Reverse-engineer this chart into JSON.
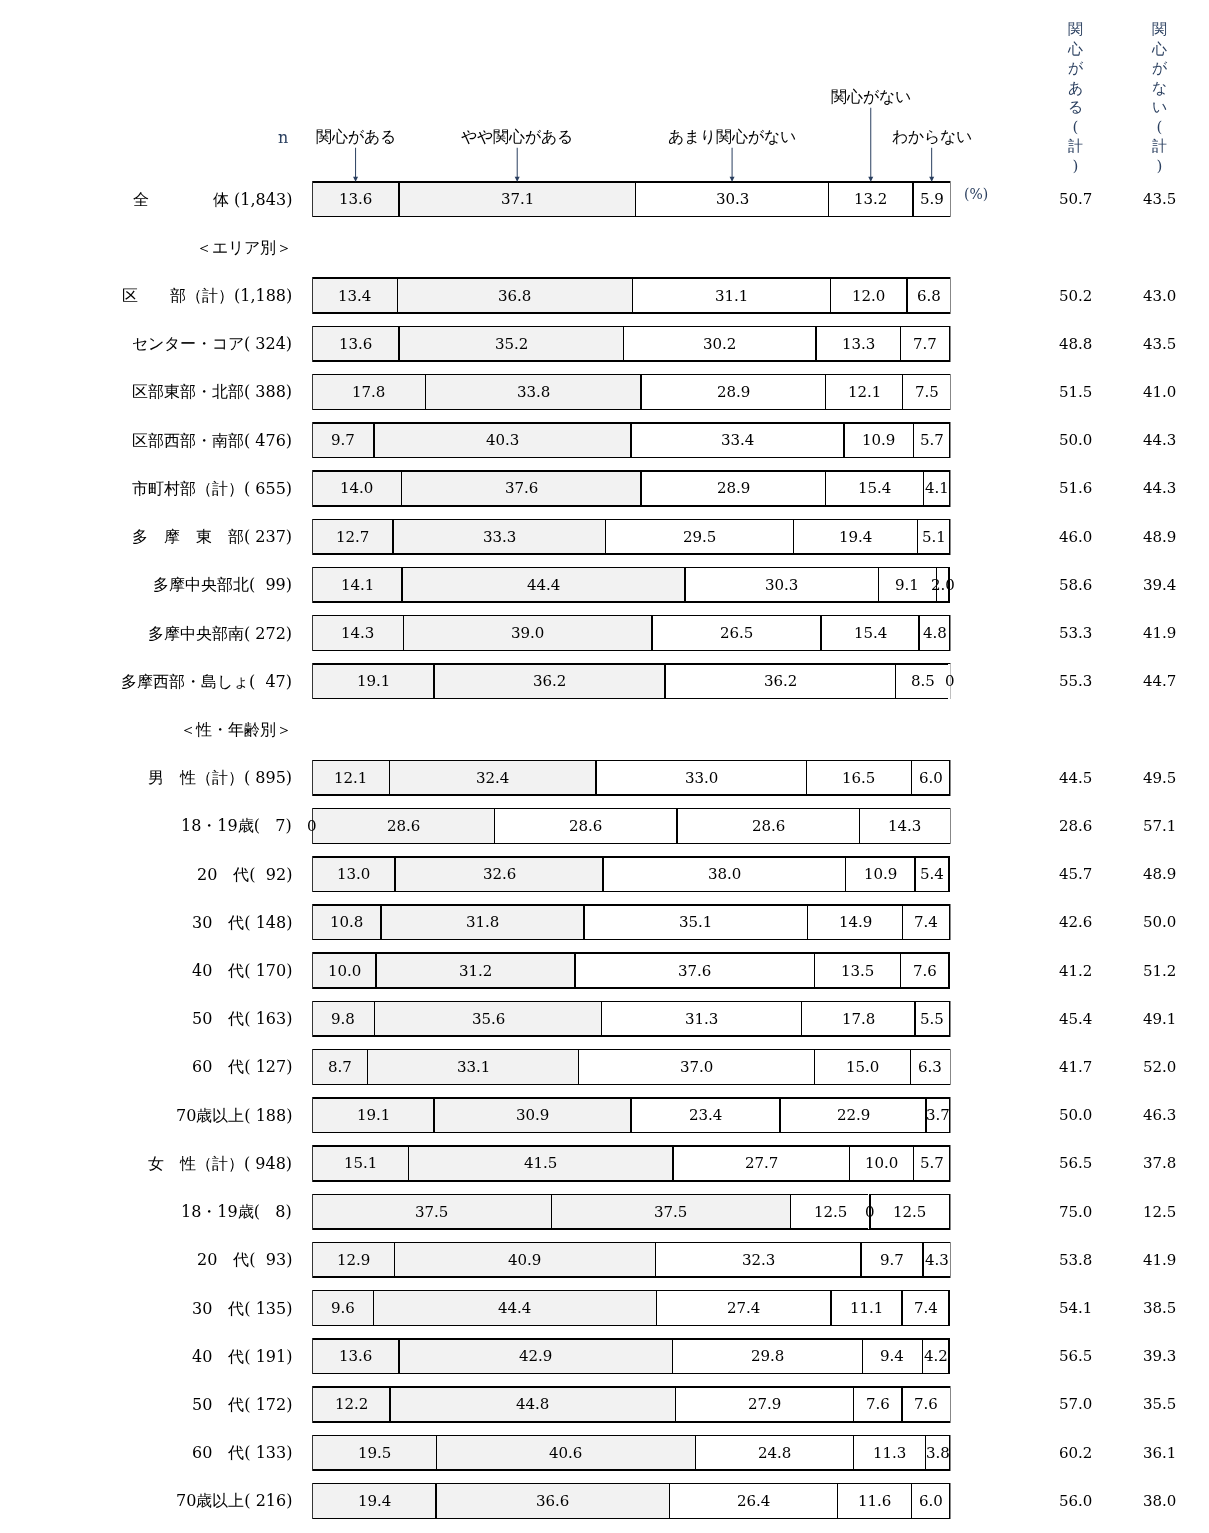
{
  "chart_data": [
    {
      "type": "bar",
      "orientation": "horizontal",
      "stacked": true,
      "legend": false,
      "annotations": [
        "n",
        "(%)"
      ],
      "categories": [
        "全　　　　体 (1,843)",
        "＜エリア別＞",
        "区　　部（計）(1,188)",
        "　センター・コア( 324)",
        "　区部東部・北部( 388)",
        "　区部西部・南部( 476)",
        "市町村部（計）( 655)",
        "　多　摩　東　部( 237)",
        "　多摩中央部北(  99)",
        "　多摩中央部南( 272)",
        "　多摩西部・島しょ(  47)",
        "＜性・年齢別＞",
        "男　性（計）( 895)",
        "　18・19歳(   7)",
        "　20　代(  92)",
        "　30　代( 148)",
        "　40　代( 170)",
        "　50　代( 163)",
        "　60　代( 127)",
        "　70歳以上( 188)",
        "女　性（計）( 948)",
        "　18・19歳(   8)",
        "　20　代(  93)",
        "　30　代( 135)",
        "　40　代( 191)",
        "　50　代( 172)",
        "　60　代( 133)",
        "　70歳以上( 216)"
      ],
      "series": [
        {
          "name": "関心がある",
          "color": "#f2f2f2",
          "values": [
            13.6,
            null,
            13.4,
            13.6,
            17.8,
            9.7,
            14.0,
            12.7,
            14.1,
            14.3,
            19.1,
            null,
            12.1,
            0,
            13.0,
            10.8,
            10.0,
            9.8,
            8.7,
            19.1,
            15.1,
            37.5,
            12.9,
            9.6,
            13.6,
            12.2,
            19.5,
            19.4
          ],
          "value_labels": [
            "13.6",
            null,
            "13.4",
            "13.6",
            "17.8",
            "9.7",
            "14.0",
            "12.7",
            "14.1",
            "14.3",
            "19.1",
            null,
            "12.1",
            "0",
            "13.0",
            "10.8",
            "10.0",
            "9.8",
            "8.7",
            "19.1",
            "15.1",
            "37.5",
            "12.9",
            "9.6",
            "13.6",
            "12.2",
            "19.5",
            "19.4"
          ]
        },
        {
          "name": "やや関心がある",
          "color": "#f2f2f2",
          "values": [
            37.1,
            null,
            36.8,
            35.2,
            33.8,
            40.3,
            37.6,
            33.3,
            44.4,
            39.0,
            36.2,
            null,
            32.4,
            28.6,
            32.6,
            31.8,
            31.2,
            35.6,
            33.1,
            30.9,
            41.5,
            37.5,
            40.9,
            44.4,
            42.9,
            44.8,
            40.6,
            36.6
          ],
          "value_labels": [
            "37.1",
            null,
            "36.8",
            "35.2",
            "33.8",
            "40.3",
            "37.6",
            "33.3",
            "44.4",
            "39.0",
            "36.2",
            null,
            "32.4",
            "28.6",
            "32.6",
            "31.8",
            "31.2",
            "35.6",
            "33.1",
            "30.9",
            "41.5",
            "37.5",
            "40.9",
            "44.4",
            "42.9",
            "44.8",
            "40.6",
            "36.6"
          ]
        },
        {
          "name": "あまり関心がない",
          "color": "#ffffff",
          "values": [
            30.3,
            null,
            31.1,
            30.2,
            28.9,
            33.4,
            28.9,
            29.5,
            30.3,
            26.5,
            36.2,
            null,
            33.0,
            28.6,
            38.0,
            35.1,
            37.6,
            31.3,
            37.0,
            23.4,
            27.7,
            12.5,
            32.3,
            27.4,
            29.8,
            27.9,
            24.8,
            26.4
          ],
          "value_labels": [
            "30.3",
            null,
            "31.1",
            "30.2",
            "28.9",
            "33.4",
            "28.9",
            "29.5",
            "30.3",
            "26.5",
            "36.2",
            null,
            "33.0",
            "28.6",
            "38.0",
            "35.1",
            "37.6",
            "31.3",
            "37.0",
            "23.4",
            "27.7",
            "12.5",
            "32.3",
            "27.4",
            "29.8",
            "27.9",
            "24.8",
            "26.4"
          ]
        },
        {
          "name": "関心がない",
          "color": "#ffffff",
          "values": [
            13.2,
            null,
            12.0,
            13.3,
            12.1,
            10.9,
            15.4,
            19.4,
            9.1,
            15.4,
            8.5,
            null,
            16.5,
            28.6,
            10.9,
            14.9,
            13.5,
            17.8,
            15.0,
            22.9,
            10.0,
            0,
            9.7,
            11.1,
            9.4,
            7.6,
            11.3,
            11.6
          ],
          "value_labels": [
            "13.2",
            null,
            "12.0",
            "13.3",
            "12.1",
            "10.9",
            "15.4",
            "19.4",
            "9.1",
            "15.4",
            "8.5",
            null,
            "16.5",
            "28.6",
            "10.9",
            "14.9",
            "13.5",
            "17.8",
            "15.0",
            "22.9",
            "10.0",
            "0",
            "9.7",
            "11.1",
            "9.4",
            "7.6",
            "11.3",
            "11.6"
          ]
        },
        {
          "name": "わからない",
          "color": "#ffffff",
          "values": [
            5.9,
            null,
            6.8,
            7.7,
            7.5,
            5.7,
            4.1,
            5.1,
            2.0,
            4.8,
            0,
            null,
            6.0,
            14.3,
            5.4,
            7.4,
            7.6,
            5.5,
            6.3,
            3.7,
            5.7,
            12.5,
            4.3,
            7.4,
            4.2,
            7.6,
            3.8,
            6.0
          ],
          "value_labels": [
            "5.9",
            null,
            "6.8",
            "7.7",
            "7.5",
            "5.7",
            "4.1",
            "5.1",
            "2.0",
            "4.8",
            "0",
            null,
            "6.0",
            "14.3",
            "5.4",
            "7.4",
            "7.6",
            "5.5",
            "6.3",
            "3.7",
            "5.7",
            "12.5",
            "4.3",
            "7.4",
            "4.2",
            "7.6",
            "3.8",
            "6.0"
          ]
        }
      ]
    },
    {
      "type": "other",
      "annotations": [
        "関心がある(計)",
        "関心がない(計)",
        "50.7",
        "43.5",
        "50.2",
        "43.0",
        "48.8",
        "43.5",
        "51.5",
        "41.0",
        "50.0",
        "44.3",
        "51.6",
        "44.3",
        "46.0",
        "48.9",
        "58.6",
        "39.4",
        "53.3",
        "41.9",
        "55.3",
        "44.7",
        "44.5",
        "49.5",
        "28.6",
        "57.1",
        "45.7",
        "48.9",
        "42.6",
        "50.0",
        "41.2",
        "51.2",
        "45.4",
        "49.1",
        "41.7",
        "52.0",
        "50.0",
        "46.3",
        "56.5",
        "37.8",
        "75.0",
        "12.5",
        "53.8",
        "41.9",
        "54.1",
        "38.5",
        "56.5",
        "39.3",
        "57.0",
        "35.5",
        "60.2",
        "36.1",
        "56.0",
        "38.0"
      ]
    }
  ]
}
